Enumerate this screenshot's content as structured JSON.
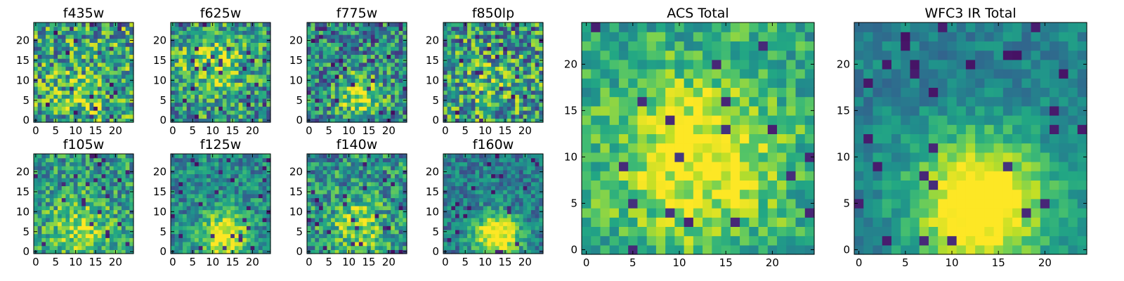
{
  "chart_data": [
    {
      "type": "heatmap",
      "title": "f435w",
      "grid_size": 25,
      "xticks": [
        "0",
        "5",
        "10",
        "15",
        "20"
      ],
      "yticks": [
        "0",
        "5",
        "10",
        "15",
        "20"
      ],
      "colormap": "viridis",
      "seed": 11,
      "noise": 0.85,
      "blob": {
        "x": 12,
        "y": 6,
        "sigma": 4,
        "amp": 0.2
      },
      "offset": 0.1,
      "grid": false,
      "legend": "none"
    },
    {
      "type": "heatmap",
      "title": "f625w",
      "grid_size": 25,
      "xticks": [
        "0",
        "5",
        "10",
        "15",
        "20"
      ],
      "yticks": [
        "0",
        "5",
        "10",
        "15",
        "20"
      ],
      "colormap": "viridis",
      "seed": 23,
      "noise": 0.75,
      "blob": {
        "x": 10,
        "y": 14,
        "sigma": 6,
        "amp": 0.3
      },
      "offset": 0.05,
      "grid": false,
      "legend": "none"
    },
    {
      "type": "heatmap",
      "title": "f775w",
      "grid_size": 25,
      "xticks": [
        "0",
        "5",
        "10",
        "15",
        "20"
      ],
      "yticks": [
        "0",
        "5",
        "10",
        "15",
        "20"
      ],
      "colormap": "viridis",
      "seed": 37,
      "noise": 0.75,
      "blob": {
        "x": 13,
        "y": 6,
        "sigma": 4,
        "amp": 0.45
      },
      "offset": 0.0,
      "grid": false,
      "legend": "none"
    },
    {
      "type": "heatmap",
      "title": "f850lp",
      "grid_size": 25,
      "xticks": [
        "0",
        "5",
        "10",
        "15",
        "20"
      ],
      "yticks": [
        "0",
        "5",
        "10",
        "15",
        "20"
      ],
      "colormap": "viridis",
      "seed": 41,
      "noise": 0.85,
      "blob": {
        "x": 12,
        "y": 8,
        "sigma": 5,
        "amp": 0.15
      },
      "offset": 0.05,
      "grid": false,
      "legend": "none"
    },
    {
      "type": "heatmap",
      "title": "ACS Total",
      "grid_size": 25,
      "xticks": [
        "0",
        "5",
        "10",
        "15",
        "20"
      ],
      "yticks": [
        "0",
        "5",
        "10",
        "15",
        "20"
      ],
      "colormap": "viridis",
      "seed": 53,
      "noise": 0.45,
      "blob": {
        "x": 12,
        "y": 10,
        "sigma": 6,
        "amp": 0.45
      },
      "offset": 0.18,
      "grid": false,
      "legend": "none"
    },
    {
      "type": "heatmap",
      "title": "f105w",
      "grid_size": 25,
      "xticks": [
        "0",
        "5",
        "10",
        "15",
        "20"
      ],
      "yticks": [
        "0",
        "5",
        "10",
        "15",
        "20"
      ],
      "colormap": "viridis",
      "seed": 61,
      "noise": 0.6,
      "blob": {
        "x": 11,
        "y": 6,
        "sigma": 5,
        "amp": 0.35
      },
      "offset": 0.1,
      "grid": false,
      "legend": "none"
    },
    {
      "type": "heatmap",
      "title": "f125w",
      "grid_size": 25,
      "xticks": [
        "0",
        "5",
        "10",
        "15",
        "20"
      ],
      "yticks": [
        "0",
        "5",
        "10",
        "15",
        "20"
      ],
      "colormap": "viridis",
      "seed": 71,
      "noise": 0.5,
      "blob": {
        "x": 13,
        "y": 4,
        "sigma": 4,
        "amp": 0.6
      },
      "offset": 0.05,
      "grid": false,
      "legend": "none"
    },
    {
      "type": "heatmap",
      "title": "f140w",
      "grid_size": 25,
      "xticks": [
        "0",
        "5",
        "10",
        "15",
        "20"
      ],
      "yticks": [
        "0",
        "5",
        "10",
        "15",
        "20"
      ],
      "colormap": "viridis",
      "seed": 83,
      "noise": 0.65,
      "blob": {
        "x": 12,
        "y": 6,
        "sigma": 5,
        "amp": 0.35
      },
      "offset": 0.05,
      "grid": false,
      "legend": "none"
    },
    {
      "type": "heatmap",
      "title": "f160w",
      "grid_size": 25,
      "xticks": [
        "0",
        "5",
        "10",
        "15",
        "20"
      ],
      "yticks": [
        "0",
        "5",
        "10",
        "15",
        "20"
      ],
      "colormap": "viridis",
      "seed": 97,
      "noise": 0.45,
      "blob": {
        "x": 13,
        "y": 4,
        "sigma": 4,
        "amp": 0.7
      },
      "offset": 0.0,
      "grid": false,
      "legend": "none"
    },
    {
      "type": "heatmap",
      "title": "WFC3 IR Total",
      "grid_size": 25,
      "xticks": [
        "0",
        "5",
        "10",
        "15",
        "20"
      ],
      "yticks": [
        "0",
        "5",
        "10",
        "15",
        "20"
      ],
      "colormap": "viridis",
      "seed": 109,
      "noise": 0.28,
      "blob": {
        "x": 13,
        "y": 5,
        "sigma": 5,
        "amp": 0.75
      },
      "offset": 0.05,
      "grid": false,
      "legend": "none"
    }
  ]
}
